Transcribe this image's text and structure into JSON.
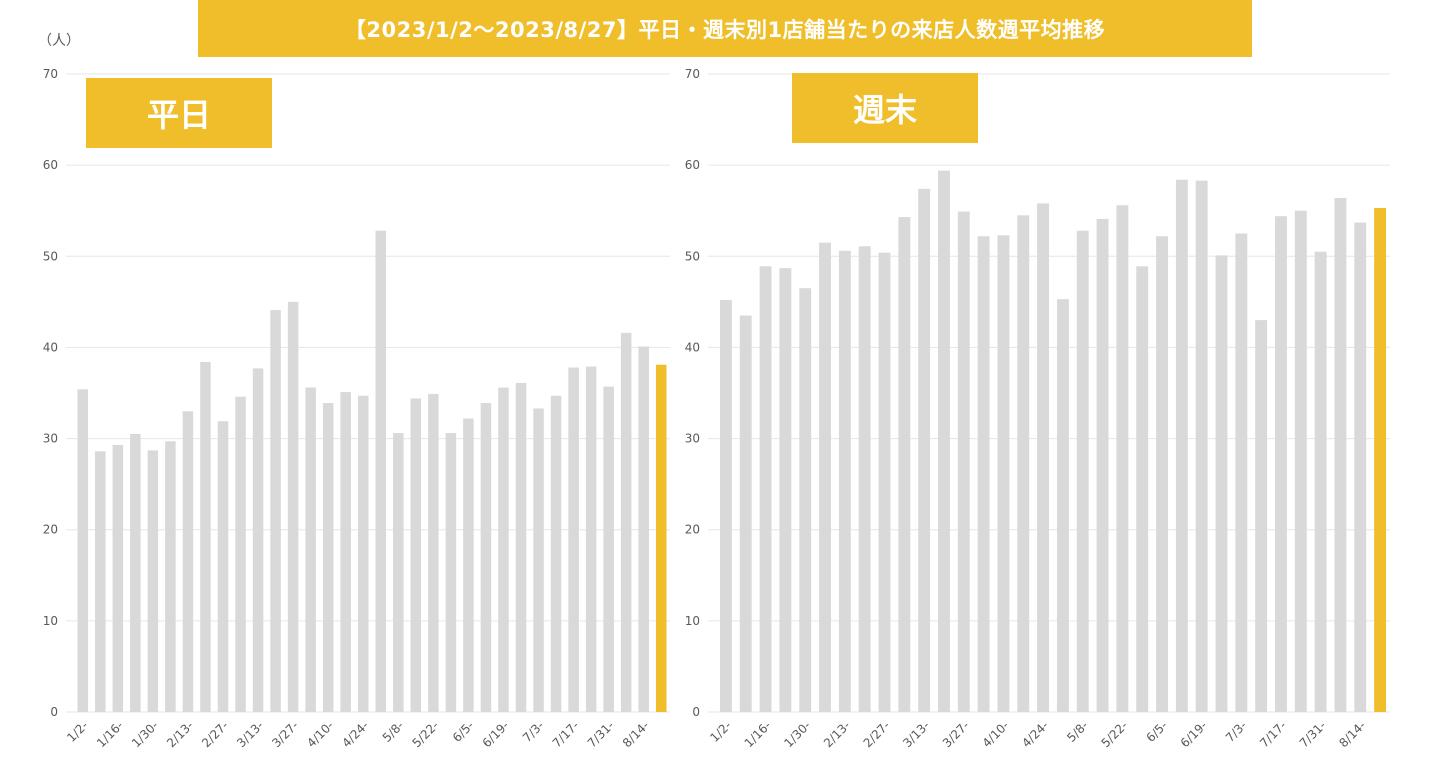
{
  "title": "【2023/1/2～2023/8/27】平日・週末別1店舗当たりの来店人数週平均推移",
  "unit_label": "（人）",
  "colors": {
    "bar": "#D9D9D9",
    "highlight": "#F0BE2A",
    "accent": "#F0BE2A"
  },
  "chart_data": [
    {
      "type": "bar",
      "title": "平日",
      "ylabel": "（人）",
      "ylim": [
        0,
        70
      ],
      "yticks": [
        0,
        10,
        20,
        30,
        40,
        50,
        60,
        70
      ],
      "grid": true,
      "x_tick_labels": [
        "1/2-",
        "1/16-",
        "1/30-",
        "2/13-",
        "2/27-",
        "3/13-",
        "3/27-",
        "4/10-",
        "4/24-",
        "5/8-",
        "5/22-",
        "6/5-",
        "6/19-",
        "7/3-",
        "7/17-",
        "7/31-",
        "8/14-"
      ],
      "x_tick_every": 2,
      "highlight_index": 34,
      "values": [
        35.4,
        28.6,
        29.3,
        30.5,
        28.7,
        29.7,
        33.0,
        38.4,
        31.9,
        34.6,
        37.7,
        44.1,
        45.0,
        35.6,
        33.9,
        35.1,
        34.7,
        52.8,
        30.6,
        34.4,
        34.9,
        30.6,
        32.2,
        33.9,
        35.6,
        36.1,
        33.3,
        34.7,
        37.8,
        37.9,
        35.7,
        41.6,
        40.1,
        38.1
      ]
    },
    {
      "type": "bar",
      "title": "週末",
      "ylim": [
        0,
        70
      ],
      "yticks": [
        0,
        10,
        20,
        30,
        40,
        50,
        60,
        70
      ],
      "grid": true,
      "x_tick_labels": [
        "1/2-",
        "1/16-",
        "1/30-",
        "2/13-",
        "2/27-",
        "3/13-",
        "3/27-",
        "4/10-",
        "4/24-",
        "5/8-",
        "5/22-",
        "6/5-",
        "6/19-",
        "7/3-",
        "7/17-",
        "7/31-",
        "8/14-"
      ],
      "x_tick_every": 2,
      "values": [
        45.2,
        43.5,
        48.9,
        48.7,
        46.5,
        51.5,
        50.6,
        51.1,
        50.4,
        54.3,
        57.4,
        59.4,
        54.9,
        52.2,
        52.3,
        54.5,
        55.8,
        45.3,
        52.8,
        54.1,
        55.6,
        48.9,
        52.2,
        58.4,
        58.3,
        50.1,
        52.5,
        43.0,
        54.4,
        55.0,
        50.5,
        56.4,
        53.7,
        55.3
      ]
    }
  ]
}
